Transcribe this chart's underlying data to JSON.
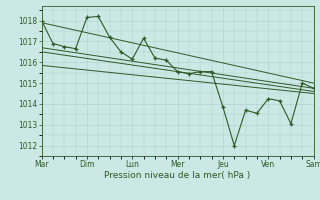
{
  "xlabel": "Pression niveau de la mer( hPa )",
  "background_color": "#cce8e4",
  "grid_color": "#aacfcb",
  "line_color": "#2d5a27",
  "ylim": [
    1011.5,
    1018.7
  ],
  "yticks": [
    1012,
    1013,
    1014,
    1015,
    1016,
    1017,
    1018
  ],
  "day_labels": [
    "Mar",
    "Dim",
    "Lun",
    "Mer",
    "Jeu",
    "Ven",
    "Sam"
  ],
  "x_ticks": [
    0,
    8,
    16,
    24,
    32,
    40,
    48
  ],
  "main_x": [
    0,
    2,
    4,
    6,
    8,
    10,
    12,
    14,
    16,
    18,
    20,
    22,
    24,
    26,
    28,
    30,
    32,
    34,
    36,
    38,
    40,
    42,
    44,
    46,
    48
  ],
  "main_y": [
    1018.0,
    1016.9,
    1016.75,
    1016.65,
    1018.15,
    1018.2,
    1017.2,
    1016.5,
    1016.15,
    1017.15,
    1016.2,
    1016.1,
    1015.55,
    1015.45,
    1015.55,
    1015.55,
    1013.85,
    1012.0,
    1013.7,
    1013.55,
    1014.25,
    1014.15,
    1013.05,
    1015.0,
    1014.75
  ],
  "trend1_x": [
    0,
    48
  ],
  "trend1_y": [
    1017.9,
    1015.0
  ],
  "trend2_x": [
    0,
    48
  ],
  "trend2_y": [
    1016.7,
    1014.75
  ],
  "trend3_x": [
    0,
    48
  ],
  "trend3_y": [
    1016.5,
    1014.6
  ],
  "trend4_x": [
    0,
    48
  ],
  "trend4_y": [
    1015.85,
    1014.5
  ]
}
